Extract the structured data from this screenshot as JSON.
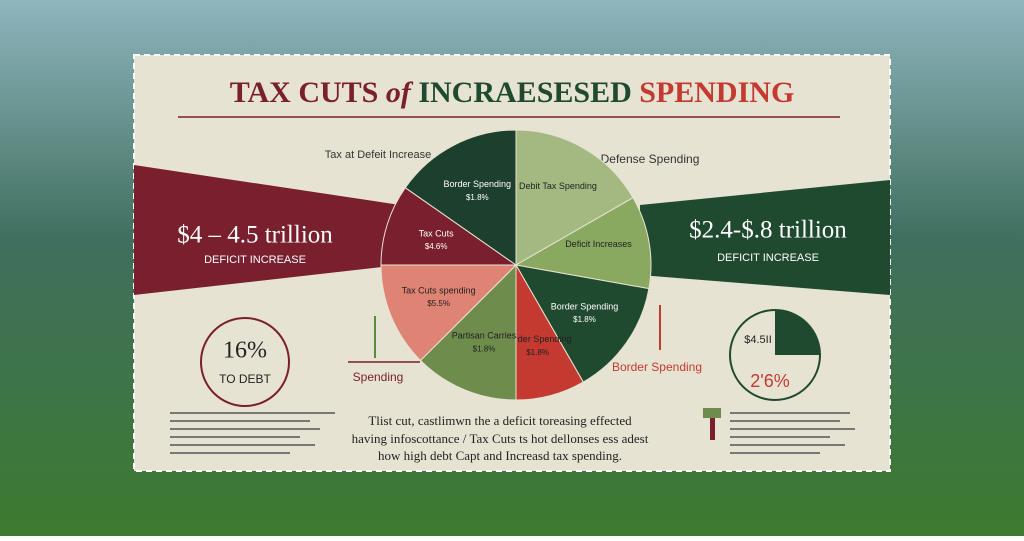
{
  "title": {
    "part1": "TAX CUTS",
    "part2": "of",
    "part3": "INCRAESESED",
    "part4": "SPENDING"
  },
  "left_band": {
    "amount": "$4 – 4.5 trillion",
    "caption": "DEFICIT INCREASE",
    "label": "Tax at Defeit Increase"
  },
  "right_band": {
    "amount": "$2.4-$.8 trillion",
    "caption": "DEFICIT INCREASE",
    "label": "Defense Spending"
  },
  "debt_circle": {
    "value": "16%",
    "caption": "TO DEBT"
  },
  "left_arrow_label": "Spending",
  "right_arrow_label": "Border Spending",
  "mini_pie": {
    "top": "$4.5II",
    "bottom": "2'6%"
  },
  "footer": {
    "lines": [
      "Tlist cut, castlimwn the a deficit toreasing effected",
      "having infoscottance / Tax Cuts ts hot dellonses ess adest",
      "how high debt Capt and Increasd tax spending."
    ]
  },
  "chart_data": {
    "type": "pie",
    "categories": [
      "Debit Tax Spending",
      "Deficit Increases",
      "Border Spending",
      "Border Spending",
      "Partisan Carries",
      "Tax Cuts spending",
      "Tax Cuts",
      "Border Spending"
    ],
    "notes": [
      "",
      "",
      "$1.8%",
      "$1.8%",
      "$1.8%",
      "$5.5%",
      "$4.6%",
      "$1.8%"
    ],
    "values": [
      16.7,
      11.1,
      13.9,
      8.3,
      12.5,
      12.5,
      9.7,
      15.3
    ],
    "colors": [
      "#a4b982",
      "#89a860",
      "#1f4a30",
      "#c43a31",
      "#6e8c4c",
      "#df8474",
      "#7a1f2d",
      "#1d3f2d"
    ]
  }
}
